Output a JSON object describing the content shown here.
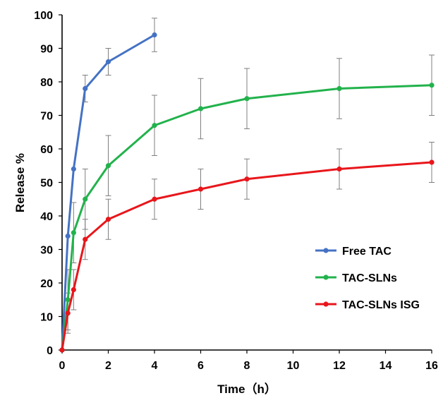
{
  "chart_data": {
    "type": "line",
    "xlabel": "Time（h）",
    "ylabel": "Release %",
    "xlim": [
      0,
      16
    ],
    "ylim": [
      0,
      100
    ],
    "xticks": [
      0,
      2,
      4,
      6,
      8,
      10,
      12,
      14,
      16
    ],
    "yticks": [
      0,
      10,
      20,
      30,
      40,
      50,
      60,
      70,
      80,
      90,
      100
    ],
    "grid": false,
    "legend_position": "bottom-right",
    "series": [
      {
        "name": "Free TAC",
        "color": "#4472C4",
        "x": [
          0,
          0.25,
          0.5,
          1,
          2,
          4
        ],
        "y": [
          0,
          34,
          54,
          78,
          86,
          94
        ],
        "err": [
          0,
          0,
          0,
          4,
          4,
          5
        ]
      },
      {
        "name": "TAC-SLNs",
        "color": "#22B24C",
        "x": [
          0,
          0.25,
          0.5,
          1,
          2,
          4,
          6,
          8,
          12,
          16
        ],
        "y": [
          0,
          15,
          35,
          45,
          55,
          67,
          72,
          75,
          78,
          79
        ],
        "err": [
          0,
          9,
          9,
          9,
          9,
          9,
          9,
          9,
          9,
          9
        ]
      },
      {
        "name": "TAC-SLNs ISG",
        "color": "#E8161B",
        "x": [
          0,
          0.25,
          0.5,
          1,
          2,
          4,
          6,
          8,
          12,
          16
        ],
        "y": [
          0,
          11,
          18,
          33,
          39,
          45,
          48,
          51,
          54,
          56
        ],
        "err": [
          0,
          6,
          6,
          6,
          6,
          6,
          6,
          6,
          6,
          6
        ]
      }
    ]
  }
}
